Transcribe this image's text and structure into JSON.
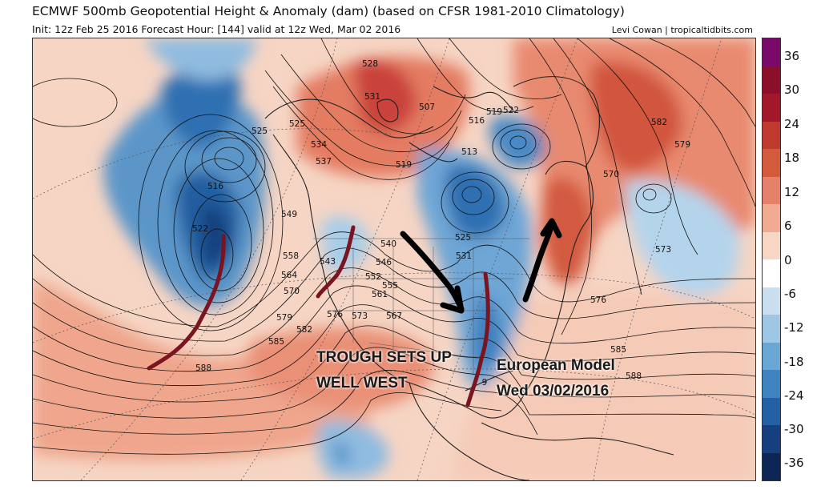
{
  "header": {
    "title": "ECMWF 500mb Geopotential Height & Anomaly (dam) (based on CFSR 1981-2010 Climatology)",
    "subtitle": "Init: 12z Feb 25 2016   Forecast Hour: [144]   valid at 12z Wed, Mar 02 2016",
    "credit": "Levi Cowan | tropicaltidbits.com"
  },
  "colorbar": {
    "labels": [
      "36",
      "30",
      "24",
      "18",
      "12",
      "6",
      "0",
      "-6",
      "-12",
      "-18",
      "-24",
      "-30",
      "-36"
    ],
    "colors": [
      "#7a0a6a",
      "#8c0f2a",
      "#a3172a",
      "#c0392f",
      "#d45a3c",
      "#e5806a",
      "#f1ab92",
      "#f8d6c6",
      "#ffffff",
      "#c9dff0",
      "#9ec6e5",
      "#6aa7d4",
      "#3f84c0",
      "#2461a4",
      "#163f7d",
      "#0c2656"
    ]
  },
  "contour_labels": [
    "528",
    "531",
    "507",
    "516",
    "519",
    "522",
    "525",
    "525",
    "534",
    "537",
    "513",
    "519",
    "582",
    "579",
    "570",
    "516",
    "549",
    "522",
    "540",
    "546",
    "552",
    "555",
    "561",
    "558",
    "543",
    "564",
    "570",
    "576",
    "573",
    "567",
    "573",
    "579",
    "582",
    "585",
    "588",
    "576",
    "525",
    "531",
    "585",
    "588",
    "9"
  ],
  "annotations": {
    "trough_text_line1": "TROUGH SETS UP",
    "trough_text_line2": "WELL WEST",
    "model_text_line1": "European Model",
    "model_text_line2": "Wed 03/02/2016"
  },
  "colors": {
    "warm_anomaly": "#e5806a",
    "cold_anomaly": "#2461a4",
    "marker_lines": "#7a1420",
    "arrows": "#000000"
  }
}
